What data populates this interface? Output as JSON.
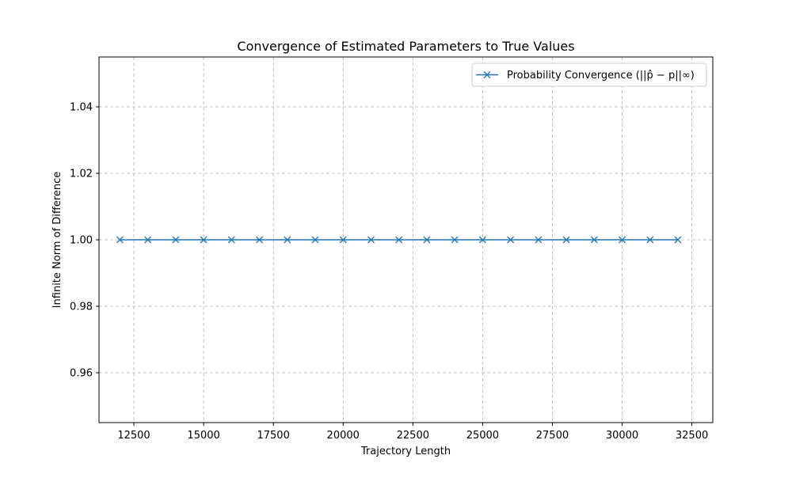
{
  "chart_data": {
    "type": "line",
    "title": "Convergence of Estimated Parameters to True Values",
    "xlabel": "Trajectory Length",
    "ylabel": "Infinite Norm of Difference",
    "xlim": [
      11250,
      33250
    ],
    "ylim": [
      0.945,
      1.055
    ],
    "x_ticks": [
      12500,
      15000,
      17500,
      20000,
      22500,
      25000,
      27500,
      30000,
      32500
    ],
    "y_ticks": [
      0.96,
      0.98,
      1.0,
      1.02,
      1.04
    ],
    "x_tick_labels": [
      "12500",
      "15000",
      "17500",
      "20000",
      "22500",
      "25000",
      "27500",
      "30000",
      "32500"
    ],
    "y_tick_labels": [
      "0.96",
      "0.98",
      "1.00",
      "1.02",
      "1.04"
    ],
    "grid": true,
    "legend_position": "top-right",
    "series": [
      {
        "name": "Probability Convergence (||p̂ − p||∞)",
        "color": "#1f77b4",
        "marker": "x",
        "x": [
          12000,
          13000,
          14000,
          15000,
          16000,
          17000,
          18000,
          19000,
          20000,
          21000,
          22000,
          23000,
          24000,
          25000,
          26000,
          27000,
          28000,
          29000,
          30000,
          31000,
          32000
        ],
        "y": [
          1.0,
          1.0,
          1.0,
          1.0,
          1.0,
          1.0,
          1.0,
          1.0,
          1.0,
          1.0,
          1.0,
          1.0,
          1.0,
          1.0,
          1.0,
          1.0,
          1.0,
          1.0,
          1.0,
          1.0,
          1.0
        ]
      }
    ]
  }
}
